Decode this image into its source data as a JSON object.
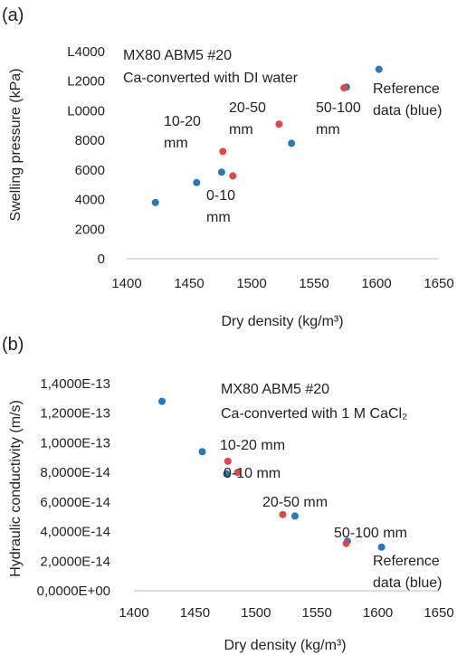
{
  "chart_data": [
    {
      "type": "scatter",
      "panel_label": "(a)",
      "title_lines": [
        "MX80 ABM5 #20",
        "Ca-converted with DI water"
      ],
      "xlabel": "Dry density (kg/m³)",
      "ylabel": "Swelling pressure (kPa)",
      "xlim": [
        1400,
        1650
      ],
      "ylim": [
        0,
        14000
      ],
      "x_ticks": [
        "1400",
        "1450",
        "1500",
        "1550",
        "1600",
        "1650"
      ],
      "y_ticks": [
        "0",
        "2000",
        "4000",
        "6000",
        "8000",
        "L0000",
        "L2000",
        "L4000"
      ],
      "grid": false,
      "series": [
        {
          "color": "#2878be",
          "points": [
            {
              "x": 1423,
              "y": 3800
            },
            {
              "x": 1456,
              "y": 5150
            },
            {
              "x": 1476,
              "y": 5850
            },
            {
              "x": 1532,
              "y": 7800
            },
            {
              "x": 1576,
              "y": 11600
            },
            {
              "x": 1602,
              "y": 12800
            }
          ]
        },
        {
          "color": "#e04848",
          "points": [
            {
              "x": 1477,
              "y": 7250
            },
            {
              "x": 1485,
              "y": 5600
            },
            {
              "x": 1522,
              "y": 9100
            },
            {
              "x": 1574,
              "y": 11550
            }
          ]
        }
      ],
      "annotations": [
        {
          "lines": [
            "10-20",
            "mm"
          ]
        },
        {
          "lines": [
            "0-10",
            "mm"
          ]
        },
        {
          "lines": [
            "20-50",
            "mm"
          ]
        },
        {
          "lines": [
            "50-100",
            "mm"
          ]
        },
        {
          "lines": [
            "Reference",
            "data (blue)"
          ]
        }
      ]
    },
    {
      "type": "scatter",
      "panel_label": "(b)",
      "title_lines": [
        "MX80 ABM5 #20",
        "Ca-converted with 1 M CaCl₂"
      ],
      "xlabel": "Dry density (kg/m³)",
      "ylabel": "Hydraulic conductivity (m/s)",
      "xlim": [
        1400,
        1650
      ],
      "ylim": [
        0,
        1.4e-13
      ],
      "x_ticks": [
        "1400",
        "1450",
        "1500",
        "1550",
        "1600",
        "1650"
      ],
      "y_ticks": [
        "0,0000E+00",
        "2,0000E-14",
        "4,0000E-14",
        "6,0000E-14",
        "8,0000E-14",
        "1,0000E-13",
        "1,2000E-13",
        "1,4000E-13"
      ],
      "grid": false,
      "series": [
        {
          "color": "#2878be",
          "points": [
            {
              "x": 1423,
              "y": 1.28e-13
            },
            {
              "x": 1456,
              "y": 9.4e-14
            },
            {
              "x": 1476,
              "y": 7.9e-14
            },
            {
              "x": 1532,
              "y": 5.05e-14
            },
            {
              "x": 1575,
              "y": 3.35e-14
            },
            {
              "x": 1603,
              "y": 2.95e-14
            }
          ]
        },
        {
          "color": "#e04848",
          "points": [
            {
              "x": 1477,
              "y": 8.75e-14
            },
            {
              "x": 1485,
              "y": 8e-14
            },
            {
              "x": 1522,
              "y": 5.15e-14
            },
            {
              "x": 1574,
              "y": 3.2e-14
            }
          ]
        }
      ],
      "annotations": [
        {
          "lines": [
            "10-20 mm"
          ]
        },
        {
          "lines": [
            "0-10 mm"
          ]
        },
        {
          "lines": [
            "20-50 mm"
          ]
        },
        {
          "lines": [
            "50-100 mm"
          ]
        },
        {
          "lines": [
            "Reference",
            "data (blue)"
          ]
        }
      ]
    }
  ]
}
